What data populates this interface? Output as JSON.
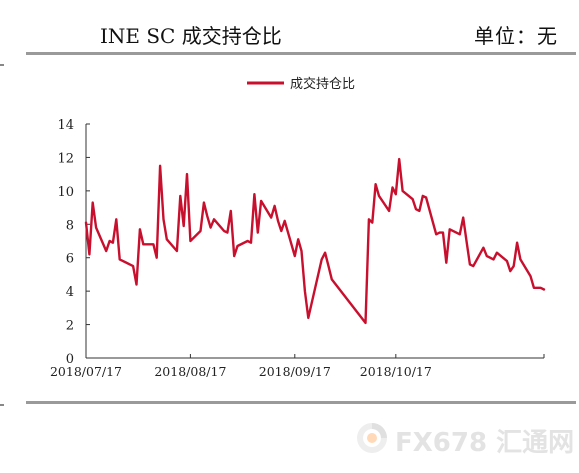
{
  "header": {
    "title": "INE SC 成交持仓比",
    "unit": "单位：无"
  },
  "watermark": {
    "text": "FX678 汇通网"
  },
  "chart_data": {
    "type": "line",
    "title": "",
    "xlabel": "",
    "ylabel": "",
    "ylim": [
      0,
      14
    ],
    "yticks": [
      0,
      2,
      4,
      6,
      8,
      10,
      12,
      14
    ],
    "xticks": [
      "2018/07/17",
      "2018/08/17",
      "2018/09/17",
      "2018/10/17"
    ],
    "legend": "top-center",
    "grid": false,
    "colors": {
      "series": "#c8102e",
      "axis": "#333333"
    },
    "series": [
      {
        "name": "成交持仓比",
        "x": [
          "2018/07/17",
          "2018/07/18",
          "2018/07/19",
          "2018/07/20",
          "2018/07/23",
          "2018/07/24",
          "2018/07/25",
          "2018/07/26",
          "2018/07/27",
          "2018/07/30",
          "2018/07/31",
          "2018/08/01",
          "2018/08/02",
          "2018/08/03",
          "2018/08/06",
          "2018/08/07",
          "2018/08/08",
          "2018/08/09",
          "2018/08/10",
          "2018/08/13",
          "2018/08/14",
          "2018/08/15",
          "2018/08/16",
          "2018/08/17",
          "2018/08/20",
          "2018/08/21",
          "2018/08/22",
          "2018/08/23",
          "2018/08/24",
          "2018/08/27",
          "2018/08/28",
          "2018/08/29",
          "2018/08/30",
          "2018/08/31",
          "2018/09/03",
          "2018/09/04",
          "2018/09/05",
          "2018/09/06",
          "2018/09/07",
          "2018/09/10",
          "2018/09/11",
          "2018/09/12",
          "2018/09/13",
          "2018/09/14",
          "2018/09/17",
          "2018/09/18",
          "2018/09/19",
          "2018/09/20",
          "2018/09/21",
          "2018/09/25",
          "2018/09/26",
          "2018/09/27",
          "2018/09/28",
          "2018/10/08",
          "2018/10/09",
          "2018/10/10",
          "2018/10/11",
          "2018/10/12",
          "2018/10/15",
          "2018/10/16",
          "2018/10/17",
          "2018/10/18",
          "2018/10/19",
          "2018/10/22",
          "2018/10/23",
          "2018/10/24",
          "2018/10/25",
          "2018/10/26",
          "2018/10/29",
          "2018/10/30",
          "2018/10/31",
          "2018/11/01",
          "2018/11/02",
          "2018/11/05",
          "2018/11/06",
          "2018/11/07",
          "2018/11/08",
          "2018/11/09",
          "2018/11/12",
          "2018/11/13",
          "2018/11/14",
          "2018/11/15",
          "2018/11/16",
          "2018/11/19",
          "2018/11/20",
          "2018/11/21",
          "2018/11/22",
          "2018/11/23",
          "2018/11/26",
          "2018/11/27",
          "2018/11/28",
          "2018/11/29",
          "2018/11/30"
        ],
        "values": [
          8.1,
          6.2,
          9.3,
          7.8,
          6.4,
          7.0,
          6.9,
          8.3,
          5.9,
          5.6,
          5.5,
          4.4,
          7.7,
          6.8,
          6.8,
          6.0,
          11.5,
          8.3,
          7.1,
          6.4,
          9.7,
          7.9,
          11.0,
          7.0,
          7.6,
          9.3,
          8.5,
          7.8,
          8.3,
          7.6,
          7.5,
          8.8,
          6.1,
          6.7,
          7.0,
          6.9,
          9.8,
          7.5,
          9.4,
          8.4,
          9.1,
          8.2,
          7.6,
          8.2,
          6.1,
          7.1,
          6.4,
          4.0,
          2.4,
          5.9,
          6.3,
          5.5,
          4.7,
          2.1,
          8.3,
          8.1,
          10.4,
          9.7,
          8.8,
          10.2,
          9.8,
          11.9,
          10.0,
          9.5,
          8.9,
          8.8,
          9.7,
          9.6,
          7.4,
          7.5,
          7.5,
          5.7,
          7.7,
          7.4,
          8.4,
          7.0,
          5.6,
          5.5,
          6.6,
          6.1,
          6.0,
          5.9,
          6.3,
          5.8,
          5.2,
          5.5,
          6.9,
          5.9,
          4.9,
          4.2,
          4.2,
          4.2,
          4.1
        ]
      }
    ]
  }
}
